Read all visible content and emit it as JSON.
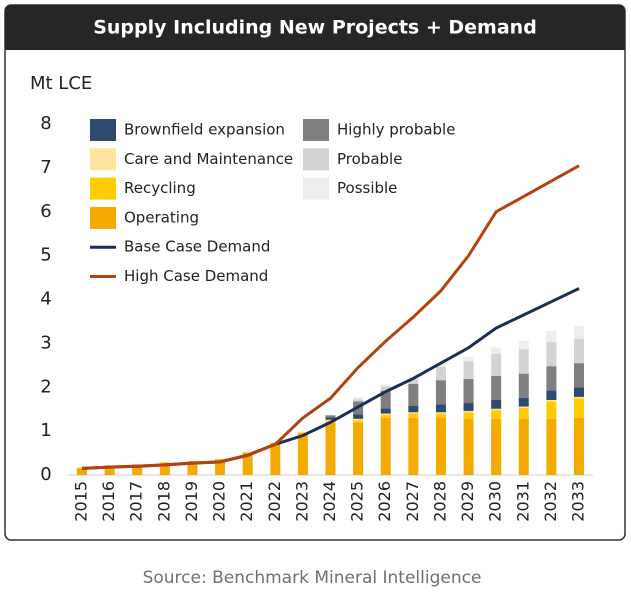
{
  "chart_data": {
    "type": "bar",
    "title": "Supply Including New Projects + Demand",
    "y_label": "Mt LCE",
    "source": "Source: Benchmark Mineral Intelligence",
    "categories": [
      "2015",
      "2016",
      "2017",
      "2018",
      "2019",
      "2020",
      "2021",
      "2022",
      "2023",
      "2024",
      "2025",
      "2026",
      "2027",
      "2028",
      "2029",
      "2030",
      "2031",
      "2032",
      "2033"
    ],
    "ylim": [
      0,
      8
    ],
    "yticks": [
      0,
      1,
      2,
      3,
      4,
      5,
      6,
      7,
      8
    ],
    "series": [
      {
        "name": "Operating",
        "color": "#f5aa00",
        "type": "bar",
        "values": [
          0.15,
          0.2,
          0.22,
          0.27,
          0.3,
          0.35,
          0.5,
          0.72,
          0.95,
          1.2,
          1.2,
          1.3,
          1.3,
          1.3,
          1.28,
          1.28,
          1.28,
          1.28,
          1.3
        ]
      },
      {
        "name": "Recycling",
        "color": "#ffcc00",
        "type": "bar",
        "values": [
          0.02,
          0.02,
          0.02,
          0.02,
          0.02,
          0.02,
          0.02,
          0.02,
          0.02,
          0.03,
          0.05,
          0.07,
          0.1,
          0.1,
          0.15,
          0.2,
          0.25,
          0.4,
          0.45
        ]
      },
      {
        "name": "Care and Maintenance",
        "color": "#ffe4a0",
        "type": "bar",
        "values": [
          null,
          null,
          null,
          null,
          null,
          null,
          null,
          null,
          0.02,
          0.03,
          0.03,
          0.03,
          0.03,
          0.03,
          0.03,
          0.03,
          0.03,
          0.03,
          0.03
        ]
      },
      {
        "name": "Brownfield expansion",
        "color": "#2e4a6e",
        "type": "bar",
        "values": [
          null,
          null,
          null,
          null,
          null,
          null,
          null,
          null,
          null,
          0.05,
          0.1,
          0.12,
          0.15,
          0.18,
          0.18,
          0.2,
          0.2,
          0.22,
          0.22
        ]
      },
      {
        "name": "Highly probable",
        "color": "#7f7f7f",
        "type": "bar",
        "values": [
          null,
          null,
          null,
          null,
          null,
          null,
          null,
          null,
          null,
          0.05,
          0.3,
          0.4,
          0.5,
          0.55,
          0.55,
          0.55,
          0.55,
          0.55,
          0.55
        ]
      },
      {
        "name": "Probable",
        "color": "#d3d3d3",
        "type": "bar",
        "values": [
          null,
          null,
          null,
          null,
          null,
          null,
          null,
          null,
          null,
          null,
          0.05,
          0.1,
          0.1,
          0.3,
          0.4,
          0.5,
          0.55,
          0.55,
          0.55
        ]
      },
      {
        "name": "Possible",
        "color": "#eeeeee",
        "type": "bar",
        "values": [
          null,
          null,
          null,
          null,
          null,
          null,
          null,
          null,
          null,
          null,
          0.05,
          0.05,
          0.05,
          0.1,
          0.1,
          0.15,
          0.2,
          0.25,
          0.3
        ]
      },
      {
        "name": "Base Case Demand",
        "color": "#1b2f55",
        "type": "line",
        "values": [
          0.15,
          0.18,
          0.2,
          0.23,
          0.27,
          0.3,
          0.45,
          0.7,
          0.9,
          1.2,
          1.55,
          1.9,
          2.2,
          2.55,
          2.9,
          3.35,
          3.65,
          3.95,
          4.25
        ]
      },
      {
        "name": "High Case Demand",
        "color": "#b5410e",
        "type": "line",
        "values": [
          0.15,
          0.18,
          0.2,
          0.23,
          0.27,
          0.3,
          0.45,
          0.7,
          1.3,
          1.75,
          2.45,
          3.05,
          3.6,
          4.2,
          5.0,
          6.0,
          6.35,
          6.7,
          7.05
        ]
      }
    ]
  }
}
